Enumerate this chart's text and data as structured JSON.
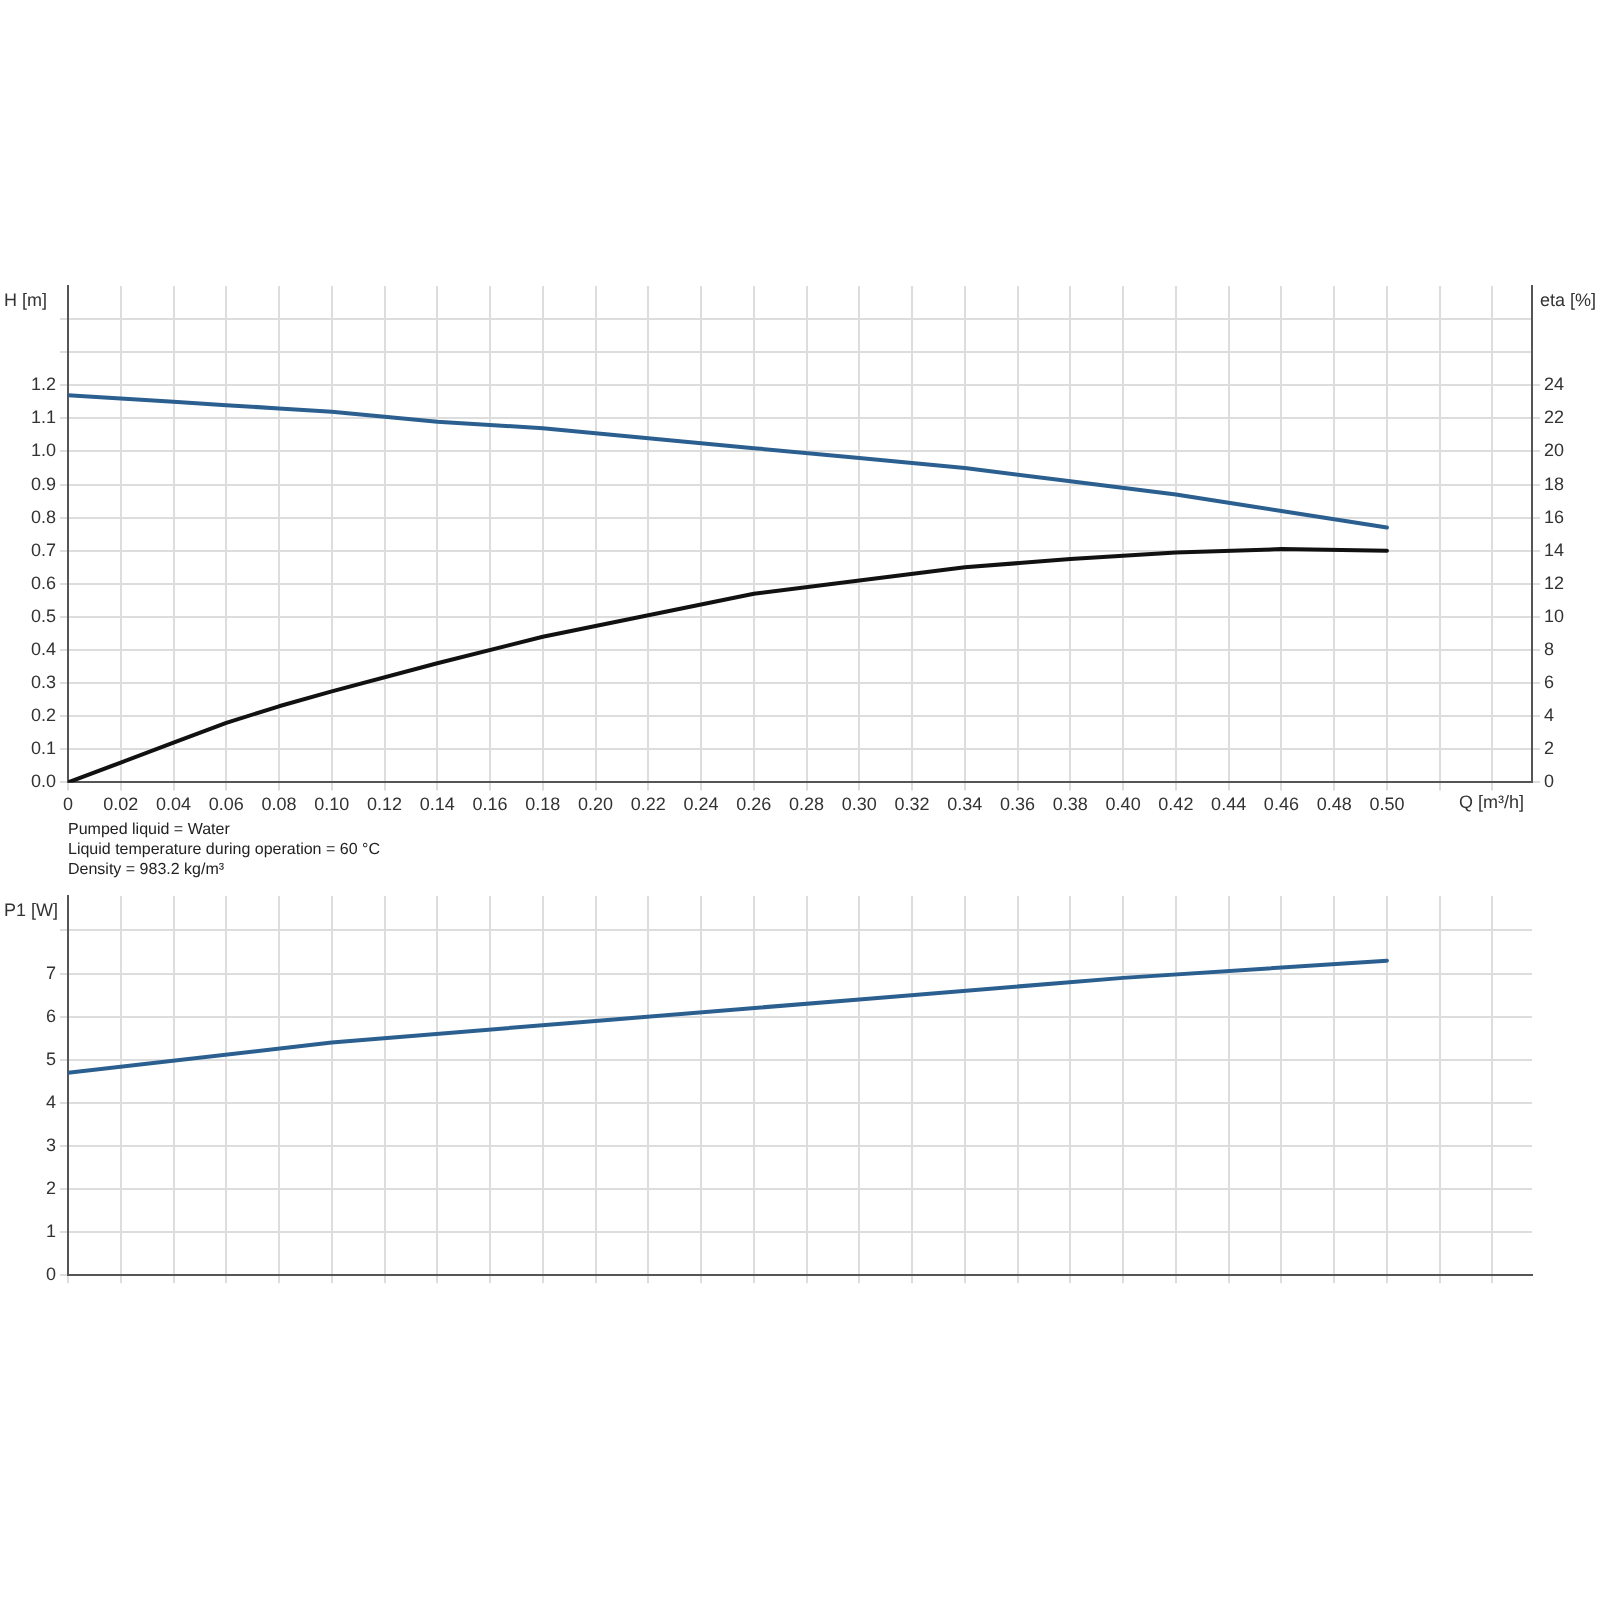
{
  "chart_data": [
    {
      "type": "line",
      "xlabel": "Q [m³/h]",
      "ylabel": "H [m]",
      "y2label": "eta [%]",
      "x": [
        0,
        0.02,
        0.04,
        0.06,
        0.08,
        0.1,
        0.14,
        0.18,
        0.22,
        0.26,
        0.3,
        0.34,
        0.38,
        0.42,
        0.46,
        0.5
      ],
      "series": [
        {
          "color": "#2a5f8f",
          "values": [
            1.17,
            1.16,
            1.15,
            1.14,
            1.13,
            1.12,
            1.09,
            1.07,
            1.04,
            1.01,
            0.98,
            0.95,
            0.91,
            0.87,
            0.82,
            0.77
          ]
        },
        {
          "color": "#111111",
          "axis": "y2",
          "values": [
            0,
            1.2,
            2.4,
            3.6,
            4.6,
            5.5,
            7.2,
            8.8,
            10.1,
            11.4,
            12.2,
            13.0,
            13.5,
            13.9,
            14.1,
            14.0
          ]
        }
      ],
      "xlim": [
        0,
        0.555
      ],
      "xticks": [
        {
          "value": 0,
          "label": "0"
        },
        {
          "value": 0.02,
          "label": "0.02"
        },
        {
          "value": 0.04,
          "label": "0.04"
        },
        {
          "value": 0.06,
          "label": "0.06"
        },
        {
          "value": 0.08,
          "label": "0.08"
        },
        {
          "value": 0.1,
          "label": "0.10"
        },
        {
          "value": 0.12,
          "label": "0.12"
        },
        {
          "value": 0.14,
          "label": "0.14"
        },
        {
          "value": 0.16,
          "label": "0.16"
        },
        {
          "value": 0.18,
          "label": "0.18"
        },
        {
          "value": 0.2,
          "label": "0.20"
        },
        {
          "value": 0.22,
          "label": "0.22"
        },
        {
          "value": 0.24,
          "label": "0.24"
        },
        {
          "value": 0.26,
          "label": "0.26"
        },
        {
          "value": 0.28,
          "label": "0.28"
        },
        {
          "value": 0.3,
          "label": "0.30"
        },
        {
          "value": 0.32,
          "label": "0.32"
        },
        {
          "value": 0.34,
          "label": "0.34"
        },
        {
          "value": 0.36,
          "label": "0.36"
        },
        {
          "value": 0.38,
          "label": "0.38"
        },
        {
          "value": 0.4,
          "label": "0.40"
        },
        {
          "value": 0.42,
          "label": "0.42"
        },
        {
          "value": 0.44,
          "label": "0.44"
        },
        {
          "value": 0.46,
          "label": "0.46"
        },
        {
          "value": 0.48,
          "label": "0.48"
        },
        {
          "value": 0.5,
          "label": "0.50"
        },
        {
          "value": 0.52,
          "label": null
        },
        {
          "value": 0.54,
          "label": null
        }
      ],
      "ylim": [
        0,
        1.5
      ],
      "yticks": [
        {
          "value": 0,
          "label": "0.0"
        },
        0.1,
        0.2,
        0.3,
        0.4,
        0.5,
        0.6,
        0.7,
        0.8,
        0.9,
        {
          "value": 1,
          "label": "1.0"
        },
        1.1,
        1.2,
        {
          "value": 1.3,
          "label": null
        },
        {
          "value": 1.4,
          "label": null
        }
      ],
      "y2lim": [
        0,
        30
      ],
      "y2ticks": [
        0,
        2,
        4,
        6,
        8,
        10,
        12,
        14,
        16,
        18,
        20,
        22,
        24
      ],
      "grid": true,
      "legend": false,
      "marker": "none",
      "line_style": "solid",
      "annotations": [
        "Pumped liquid = Water",
        "Liquid temperature during operation = 60 °C",
        "Density = 983.2 kg/m³"
      ]
    },
    {
      "type": "line",
      "ylabel": "P1 [W]",
      "x": [
        0,
        0.1,
        0.2,
        0.3,
        0.4,
        0.5
      ],
      "series": [
        {
          "color": "#2a5f8f",
          "values": [
            4.7,
            5.4,
            5.9,
            6.4,
            6.9,
            7.3
          ]
        }
      ],
      "xlim": [
        0,
        0.555
      ],
      "xticks": [
        0,
        0.02,
        0.04,
        0.06,
        0.08,
        0.1,
        0.12,
        0.14,
        0.16,
        0.18,
        0.2,
        0.22,
        0.24,
        0.26,
        0.28,
        0.3,
        0.32,
        0.34,
        0.36,
        0.38,
        0.4,
        0.42,
        0.44,
        0.46,
        0.48,
        0.5,
        0.52,
        0.54
      ],
      "ylim": [
        0,
        8.8
      ],
      "yticks": [
        0,
        1,
        2,
        3,
        4,
        5,
        6,
        7,
        {
          "value": 8,
          "label": null
        }
      ],
      "tick_labels": "y",
      "grid": true,
      "legend": false,
      "marker": "none",
      "line_style": "solid"
    }
  ]
}
